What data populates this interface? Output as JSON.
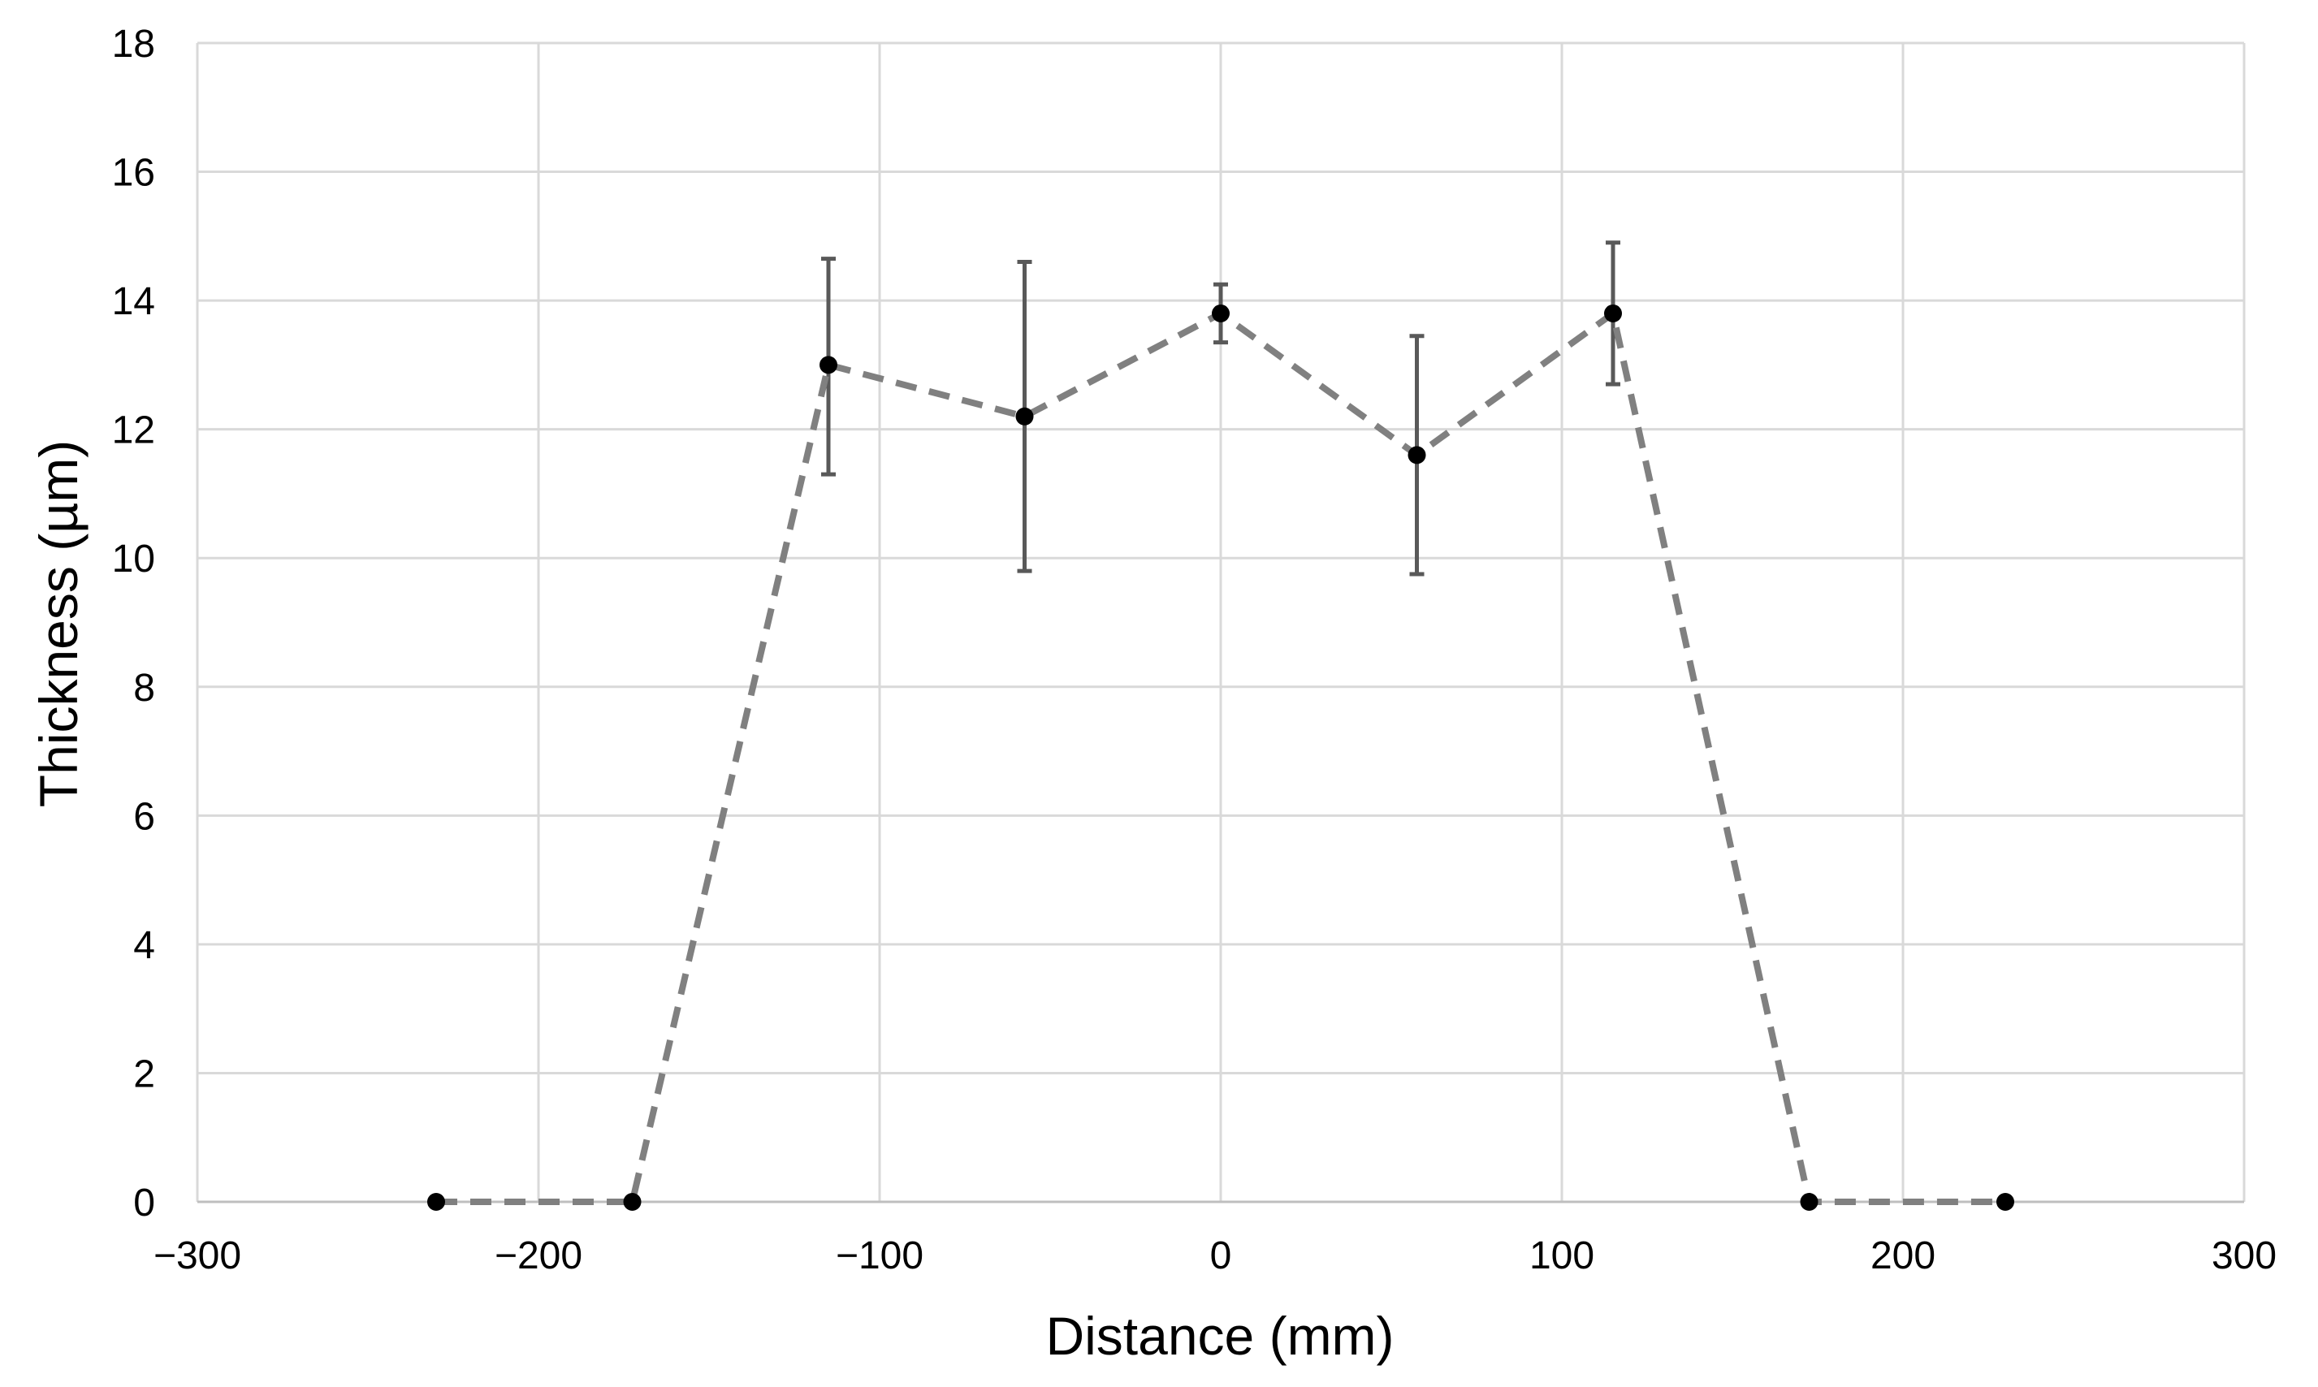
{
  "chart_data": {
    "type": "scatter",
    "title": "",
    "xlabel": "Distance (mm)",
    "ylabel": "Thickness (µm)",
    "xlim": [
      -300,
      300
    ],
    "ylim": [
      0,
      18
    ],
    "x_ticks": [
      -300,
      -200,
      -100,
      0,
      100,
      200,
      300
    ],
    "y_ticks": [
      0,
      2,
      4,
      6,
      8,
      10,
      12,
      14,
      16,
      18
    ],
    "x_tick_labels": [
      "−300",
      "−200",
      "−100",
      "0",
      "100",
      "200",
      "300"
    ],
    "y_tick_labels": [
      "0",
      "2",
      "4",
      "6",
      "8",
      "10",
      "12",
      "14",
      "16",
      "18"
    ],
    "grid": true,
    "legend": false,
    "line_style": "dashed",
    "colors": {
      "line": "#808080",
      "marker": "#000000",
      "error_bar": "#595959",
      "grid": "#d9d9d9"
    },
    "series": [
      {
        "x": [
          -230,
          -172.5,
          -115,
          -57.5,
          0,
          57.5,
          115,
          172.5,
          230
        ],
        "y": [
          0,
          0,
          13.0,
          12.2,
          13.8,
          11.6,
          13.8,
          0,
          0
        ],
        "error_low": [
          null,
          null,
          11.3,
          9.8,
          13.35,
          9.75,
          12.7,
          null,
          null
        ],
        "error_high": [
          null,
          null,
          14.65,
          14.6,
          14.25,
          13.45,
          14.9,
          null,
          null
        ]
      }
    ]
  }
}
